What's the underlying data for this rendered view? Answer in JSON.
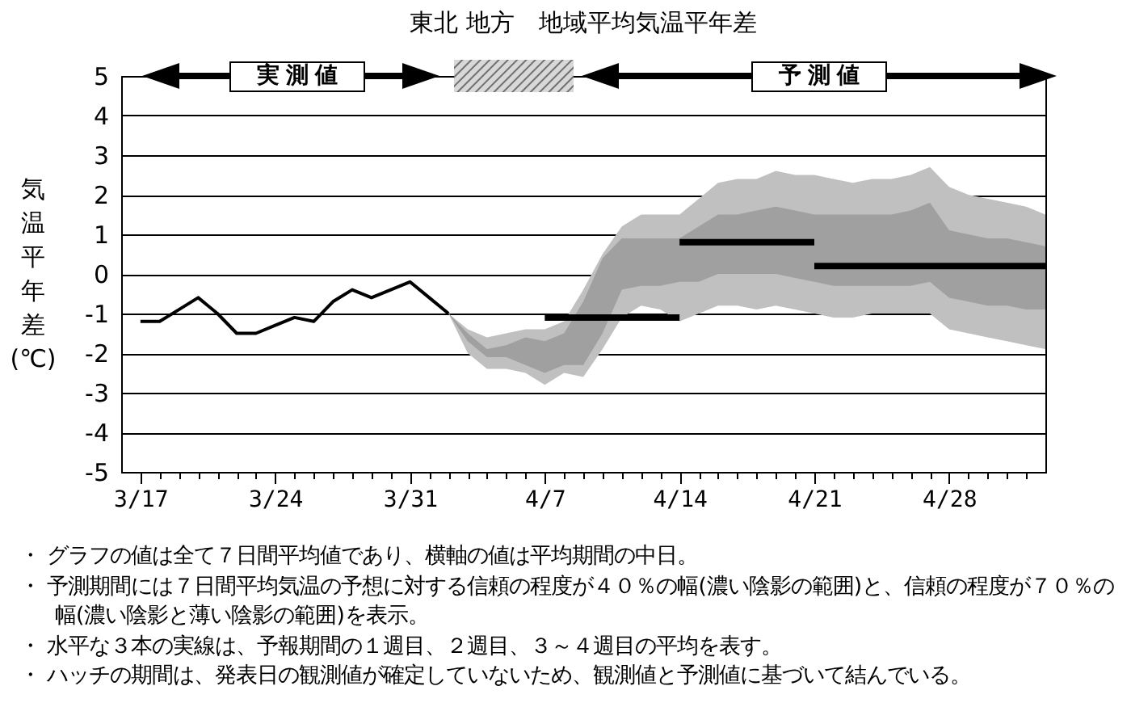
{
  "chart_data": {
    "type": "line",
    "title": "東北 地方　地域平均気温平年差",
    "ylabel": "気温平年差(℃)",
    "xlim": [
      "--03-16",
      "--05-03"
    ],
    "ylim": [
      -5,
      5
    ],
    "yticks": [
      -5,
      -4,
      -3,
      -2,
      -1,
      0,
      1,
      2,
      3,
      4,
      5
    ],
    "xticks": [
      {
        "value": "--03-17",
        "label": "3/17"
      },
      {
        "value": "--03-18",
        "label": null
      },
      {
        "value": "--03-19",
        "label": null
      },
      {
        "value": "--03-20",
        "label": null
      },
      {
        "value": "--03-21",
        "label": null
      },
      {
        "value": "--03-22",
        "label": null
      },
      {
        "value": "--03-23",
        "label": null
      },
      {
        "value": "--03-24",
        "label": "3/24"
      },
      {
        "value": "--03-25",
        "label": null
      },
      {
        "value": "--03-26",
        "label": null
      },
      {
        "value": "--03-27",
        "label": null
      },
      {
        "value": "--03-28",
        "label": null
      },
      {
        "value": "--03-29",
        "label": null
      },
      {
        "value": "--03-30",
        "label": null
      },
      {
        "value": "--03-31",
        "label": "3/31"
      },
      {
        "value": "--04-01",
        "label": null
      },
      {
        "value": "--04-02",
        "label": null
      },
      {
        "value": "--04-03",
        "label": null
      },
      {
        "value": "--04-04",
        "label": null
      },
      {
        "value": "--04-05",
        "label": null
      },
      {
        "value": "--04-06",
        "label": null
      },
      {
        "value": "--04-07",
        "label": "4/7"
      },
      {
        "value": "--04-08",
        "label": null
      },
      {
        "value": "--04-09",
        "label": null
      },
      {
        "value": "--04-10",
        "label": null
      },
      {
        "value": "--04-11",
        "label": null
      },
      {
        "value": "--04-12",
        "label": null
      },
      {
        "value": "--04-13",
        "label": null
      },
      {
        "value": "--04-14",
        "label": "4/14"
      },
      {
        "value": "--04-15",
        "label": null
      },
      {
        "value": "--04-16",
        "label": null
      },
      {
        "value": "--04-17",
        "label": null
      },
      {
        "value": "--04-18",
        "label": null
      },
      {
        "value": "--04-19",
        "label": null
      },
      {
        "value": "--04-20",
        "label": null
      },
      {
        "value": "--04-21",
        "label": "4/21"
      },
      {
        "value": "--04-22",
        "label": null
      },
      {
        "value": "--04-23",
        "label": null
      },
      {
        "value": "--04-24",
        "label": null
      },
      {
        "value": "--04-25",
        "label": null
      },
      {
        "value": "--04-26",
        "label": null
      },
      {
        "value": "--04-27",
        "label": null
      },
      {
        "value": "--04-28",
        "label": "4/28"
      },
      {
        "value": "--04-29",
        "label": null
      },
      {
        "value": "--04-30",
        "label": null
      },
      {
        "value": "--05-01",
        "label": null
      },
      {
        "value": "--05-02",
        "label": null
      }
    ],
    "grid": "y",
    "series": [
      {
        "color": "#c0c0c0",
        "x": [
          "--04-02",
          "--04-03",
          "--04-04",
          "--04-05",
          "--04-06",
          "--04-07",
          "--04-08",
          "--04-09",
          "--04-10",
          "--04-11",
          "--04-12",
          "--04-13",
          "--04-14",
          "--04-15",
          "--04-16",
          "--04-17",
          "--04-18",
          "--04-19",
          "--04-20",
          "--04-21",
          "--04-22",
          "--04-23",
          "--04-24",
          "--04-25",
          "--04-26",
          "--04-27",
          "--04-28",
          "--04-29",
          "--04-30",
          "--05-01",
          "--05-02",
          "--05-03"
        ],
        "values": [
          null,
          null,
          null,
          null,
          null,
          null,
          null,
          null,
          null,
          null,
          null,
          null,
          null,
          null,
          null,
          null,
          null,
          null,
          null,
          null,
          null,
          null,
          null,
          null,
          null,
          null,
          null,
          null,
          null,
          null,
          null,
          null
        ],
        "lower": [
          -1.0,
          -2.0,
          -2.4,
          -2.4,
          -2.5,
          -2.8,
          -2.5,
          -2.6,
          -1.9,
          -1.1,
          -0.8,
          -0.9,
          -1.2,
          -1.0,
          -0.8,
          -0.8,
          -0.9,
          -0.8,
          -0.9,
          -1.0,
          -1.1,
          -1.1,
          -1.0,
          -1.0,
          -1.0,
          -1.0,
          -1.4,
          -1.5,
          -1.6,
          -1.7,
          -1.8,
          -1.9
        ],
        "upper": [
          -1.0,
          -1.4,
          -1.6,
          -1.5,
          -1.4,
          -1.4,
          -1.2,
          -0.4,
          0.5,
          1.2,
          1.5,
          1.5,
          1.5,
          1.9,
          2.3,
          2.4,
          2.4,
          2.6,
          2.5,
          2.5,
          2.4,
          2.3,
          2.4,
          2.4,
          2.5,
          2.7,
          2.2,
          2.0,
          1.9,
          1.8,
          1.7,
          1.5
        ]
      },
      {
        "color": "#a0a0a0",
        "x": [
          "--04-02",
          "--04-03",
          "--04-04",
          "--04-05",
          "--04-06",
          "--04-07",
          "--04-08",
          "--04-09",
          "--04-10",
          "--04-11",
          "--04-12",
          "--04-13",
          "--04-14",
          "--04-15",
          "--04-16",
          "--04-17",
          "--04-18",
          "--04-19",
          "--04-20",
          "--04-21",
          "--04-22",
          "--04-23",
          "--04-24",
          "--04-25",
          "--04-26",
          "--04-27",
          "--04-28",
          "--04-29",
          "--04-30",
          "--05-01",
          "--05-02",
          "--05-03"
        ],
        "values": [
          null,
          null,
          null,
          null,
          null,
          null,
          null,
          null,
          null,
          null,
          null,
          null,
          null,
          null,
          null,
          null,
          null,
          null,
          null,
          null,
          null,
          null,
          null,
          null,
          null,
          null,
          null,
          null,
          null,
          null,
          null,
          null
        ],
        "lower": [
          -1.0,
          -1.7,
          -2.1,
          -2.1,
          -2.3,
          -2.5,
          -2.3,
          -2.3,
          -1.5,
          -0.4,
          -0.3,
          -0.3,
          -0.2,
          -0.2,
          0.0,
          0.0,
          0.0,
          0.0,
          -0.1,
          -0.2,
          -0.3,
          -0.3,
          -0.3,
          -0.3,
          -0.3,
          -0.2,
          -0.6,
          -0.7,
          -0.8,
          -0.8,
          -0.9,
          -0.9
        ],
        "upper": [
          -1.0,
          -1.5,
          -1.9,
          -1.8,
          -1.6,
          -1.7,
          -1.5,
          -0.7,
          0.4,
          0.9,
          0.9,
          0.9,
          0.9,
          1.2,
          1.5,
          1.5,
          1.6,
          1.7,
          1.6,
          1.5,
          1.5,
          1.5,
          1.5,
          1.5,
          1.6,
          1.8,
          1.1,
          1.0,
          0.9,
          0.9,
          0.8,
          0.7
        ]
      },
      {
        "color": "#000000",
        "x": [
          "--03-17",
          "--03-18",
          "--03-19",
          "--03-20",
          "--03-21",
          "--03-22",
          "--03-23",
          "--03-24",
          "--03-25",
          "--03-26",
          "--03-27",
          "--03-28",
          "--03-29",
          "--03-30",
          "--03-31",
          "--04-01",
          "--04-02"
        ],
        "values": [
          -1.2,
          -1.2,
          -0.9,
          -0.6,
          -1.0,
          -1.5,
          -1.5,
          -1.3,
          -1.1,
          -1.2,
          -0.7,
          -0.4,
          -0.6,
          -0.4,
          -0.2,
          -0.6,
          -1.0
        ]
      },
      {
        "color": "#000000",
        "x": [
          "--04-07",
          "--04-14"
        ],
        "values": [
          -1.1,
          -1.1
        ]
      },
      {
        "color": "#000000",
        "x": [
          "--04-14",
          "--04-21"
        ],
        "values": [
          0.8,
          0.8
        ]
      },
      {
        "color": "#000000",
        "x": [
          "--04-21",
          "--05-03"
        ],
        "values": [
          0.2,
          0.2
        ]
      }
    ],
    "annotations": [
      "実測値",
      "予測値",
      "・ グラフの値は全て７日間平均値であり、横軸の値は平均期間の中日。",
      "・ 予測期間には７日間平均気温の予想に対する信頼の程度が４０％の幅(濃い陰影の範囲)と、信頼の程度が７０％の幅(濃い陰影と薄い陰影の範囲)を表示。",
      "・ 水平な３本の実線は、予報期間の１週目、２週目、３～４週目の平均を表す。",
      "・ ハッチの期間は、発表日の観測値が確定していないため、観測値と予測値に基づいて結んでいる。"
    ]
  }
}
